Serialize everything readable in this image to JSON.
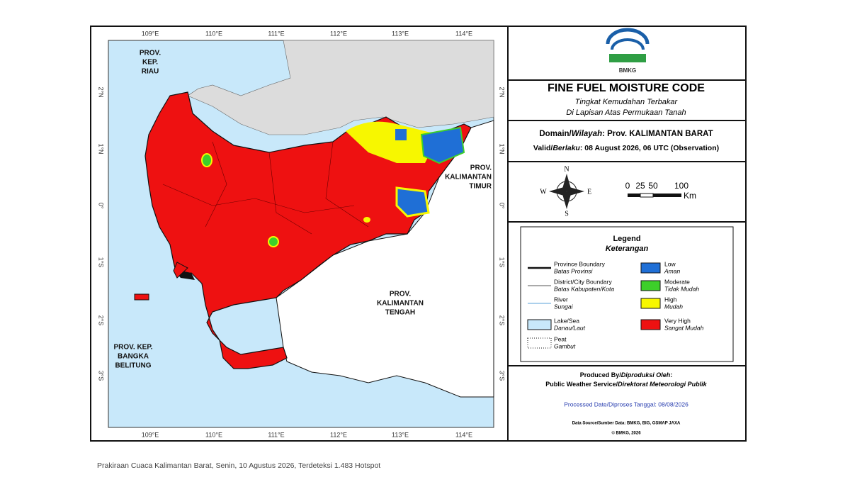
{
  "map": {
    "lon_labels": [
      "109°E",
      "110°E",
      "111°E",
      "112°E",
      "113°E",
      "114°E"
    ],
    "lat_labels": [
      "2°N",
      "1°N",
      "0°",
      "1°S",
      "2°S",
      "3°S"
    ],
    "regions": {
      "riau": [
        "PROV.",
        "KEP.",
        "RIAU"
      ],
      "kaltim": [
        "PROV.",
        "KALIMANTAN",
        "TIMUR"
      ],
      "kalteng": [
        "PROV.",
        "KALIMANTAN",
        "TENGAH"
      ],
      "babel": [
        "PROV. KEP.",
        "BANGKA",
        "BELITUNG"
      ]
    }
  },
  "panel": {
    "logo_text": "BMKG",
    "title": "FINE FUEL MOISTURE CODE",
    "subtitle_1": "Tingkat Kemudahan Terbakar",
    "subtitle_2": "Di Lapisan Atas Permukaan Tanah",
    "domain": {
      "en": "Domain/",
      "id": "Wilayah",
      "value": ": Prov. KALIMANTAN BARAT"
    },
    "valid": {
      "en": "Valid/",
      "id": "Berlaku",
      "value": ": 08 August 2026, 06 UTC (Observation)"
    },
    "compass": {
      "n": "N",
      "s": "S",
      "e": "E",
      "w": "W"
    },
    "scale": {
      "labels": [
        "0",
        "25",
        "50",
        "100"
      ],
      "unit": "Km"
    },
    "legend": {
      "title": "Legend",
      "subtitle": "Keterangan",
      "lines": [
        {
          "en": "Province Boundary",
          "id": "Batas Provinsi"
        },
        {
          "en": "District/City Boundary",
          "id": "Batas Kabupaten/Kota"
        },
        {
          "en": "River",
          "id": "Sungai"
        },
        {
          "en": "Lake/Sea",
          "id": "Danau/Laut"
        },
        {
          "en": "Peat",
          "id": "Gambut"
        }
      ],
      "classes": [
        {
          "en": "Low",
          "id": "Aman",
          "color": "#1f6fd6"
        },
        {
          "en": "Moderate",
          "id": "Tidak Mudah",
          "color": "#3dcf2a"
        },
        {
          "en": "High",
          "id": "Mudah",
          "color": "#f7f700"
        },
        {
          "en": "Very High",
          "id": "Sangat Mudah",
          "color": "#ee1111"
        }
      ]
    },
    "produced": {
      "en": "Produced By/",
      "id": "Diproduksi Oleh",
      "colon": ":",
      "org_en": "Public Weather Service/",
      "org_id": "Direktorat Meteorologi Publik"
    },
    "processed": "Processed Date/Diproses Tanggal: 08/08/2026",
    "source": "Data Source/Sumber Data: BMKG, BIG, GSMAP JAXA",
    "copyright": "© BMKG, 2026"
  },
  "caption": "Prakiraan Cuaca Kalimantan Barat, Senin, 10 Agustus 2026, Terdeteksi 1.483 Hotspot"
}
